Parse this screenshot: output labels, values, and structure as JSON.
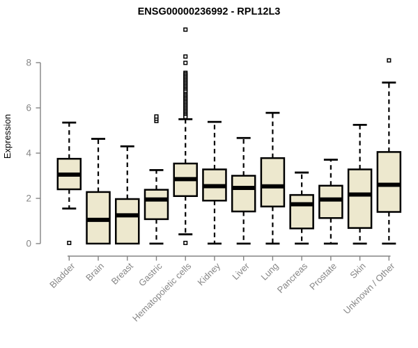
{
  "chart_data": {
    "type": "boxplot",
    "title": "ENSG00000236992 - RPL12L3",
    "ylabel": "Expression",
    "xlabel": "",
    "ylim": [
      0,
      8
    ],
    "yticks": [
      0,
      2,
      4,
      6,
      8
    ],
    "grid": false,
    "legend": false,
    "categories": [
      "Bladder",
      "Brain",
      "Breast",
      "Gastric",
      "Hematopoietic cells",
      "Kidney",
      "Liver",
      "Lung",
      "Pancreas",
      "Prostate",
      "Skin",
      "Unknown / Other"
    ],
    "boxes": [
      {
        "label": "Bladder",
        "whisker_low": 1.55,
        "q1": 2.4,
        "median": 3.05,
        "q3": 3.75,
        "whisker_high": 5.35,
        "outliers": [
          0.03
        ]
      },
      {
        "label": "Brain",
        "whisker_low": 0.0,
        "q1": 0.0,
        "median": 1.05,
        "q3": 2.28,
        "whisker_high": 4.63,
        "outliers": []
      },
      {
        "label": "Breast",
        "whisker_low": 0.0,
        "q1": 0.0,
        "median": 1.25,
        "q3": 1.97,
        "whisker_high": 4.3,
        "outliers": []
      },
      {
        "label": "Gastric",
        "whisker_low": 0.0,
        "q1": 1.08,
        "median": 1.95,
        "q3": 2.38,
        "whisker_high": 3.25,
        "outliers": [
          5.42,
          5.52,
          5.62
        ]
      },
      {
        "label": "Hematopoietic cells",
        "whisker_low": 0.41,
        "q1": 2.1,
        "median": 2.85,
        "q3": 3.54,
        "whisker_high": 5.5,
        "outliers": [
          9.46,
          8.27,
          7.99,
          7.55,
          7.49,
          7.43,
          7.37,
          7.31,
          7.25,
          7.19,
          7.13,
          7.07,
          7.01,
          6.95,
          6.89,
          6.83,
          6.77,
          6.71,
          6.62,
          6.56,
          6.5,
          6.44,
          6.38,
          6.32,
          6.26,
          6.2,
          6.14,
          6.08,
          6.02,
          5.96,
          5.9,
          5.84,
          5.78,
          5.72,
          5.66,
          5.6,
          0.03
        ]
      },
      {
        "label": "Kidney",
        "whisker_low": 0.0,
        "q1": 1.9,
        "median": 2.54,
        "q3": 3.28,
        "whisker_high": 5.38,
        "outliers": []
      },
      {
        "label": "Liver",
        "whisker_low": 0.0,
        "q1": 1.42,
        "median": 2.46,
        "q3": 3.0,
        "whisker_high": 4.67,
        "outliers": []
      },
      {
        "label": "Lung",
        "whisker_low": 0.0,
        "q1": 1.64,
        "median": 2.53,
        "q3": 3.78,
        "whisker_high": 5.78,
        "outliers": []
      },
      {
        "label": "Pancreas",
        "whisker_low": 0.0,
        "q1": 0.67,
        "median": 1.74,
        "q3": 2.15,
        "whisker_high": 3.14,
        "outliers": []
      },
      {
        "label": "Prostate",
        "whisker_low": 0.0,
        "q1": 1.13,
        "median": 1.95,
        "q3": 2.56,
        "whisker_high": 3.71,
        "outliers": []
      },
      {
        "label": "Skin",
        "whisker_low": 0.0,
        "q1": 0.69,
        "median": 2.17,
        "q3": 3.28,
        "whisker_high": 5.25,
        "outliers": []
      },
      {
        "label": "Unknown / Other",
        "whisker_low": 0.0,
        "q1": 1.4,
        "median": 2.6,
        "q3": 4.05,
        "whisker_high": 7.12,
        "outliers": [
          8.1
        ]
      }
    ],
    "style": {
      "box_fill": "#EDE8CE",
      "box_border": "#000000",
      "median_color": "#000000",
      "whisker_color": "#000000",
      "outlier_fill": "#FFFFFF",
      "outlier_border": "#000000",
      "axis_color": "#838383",
      "label_color": "#868686",
      "title_color": "#000000",
      "background": "#FFFFFF"
    }
  }
}
